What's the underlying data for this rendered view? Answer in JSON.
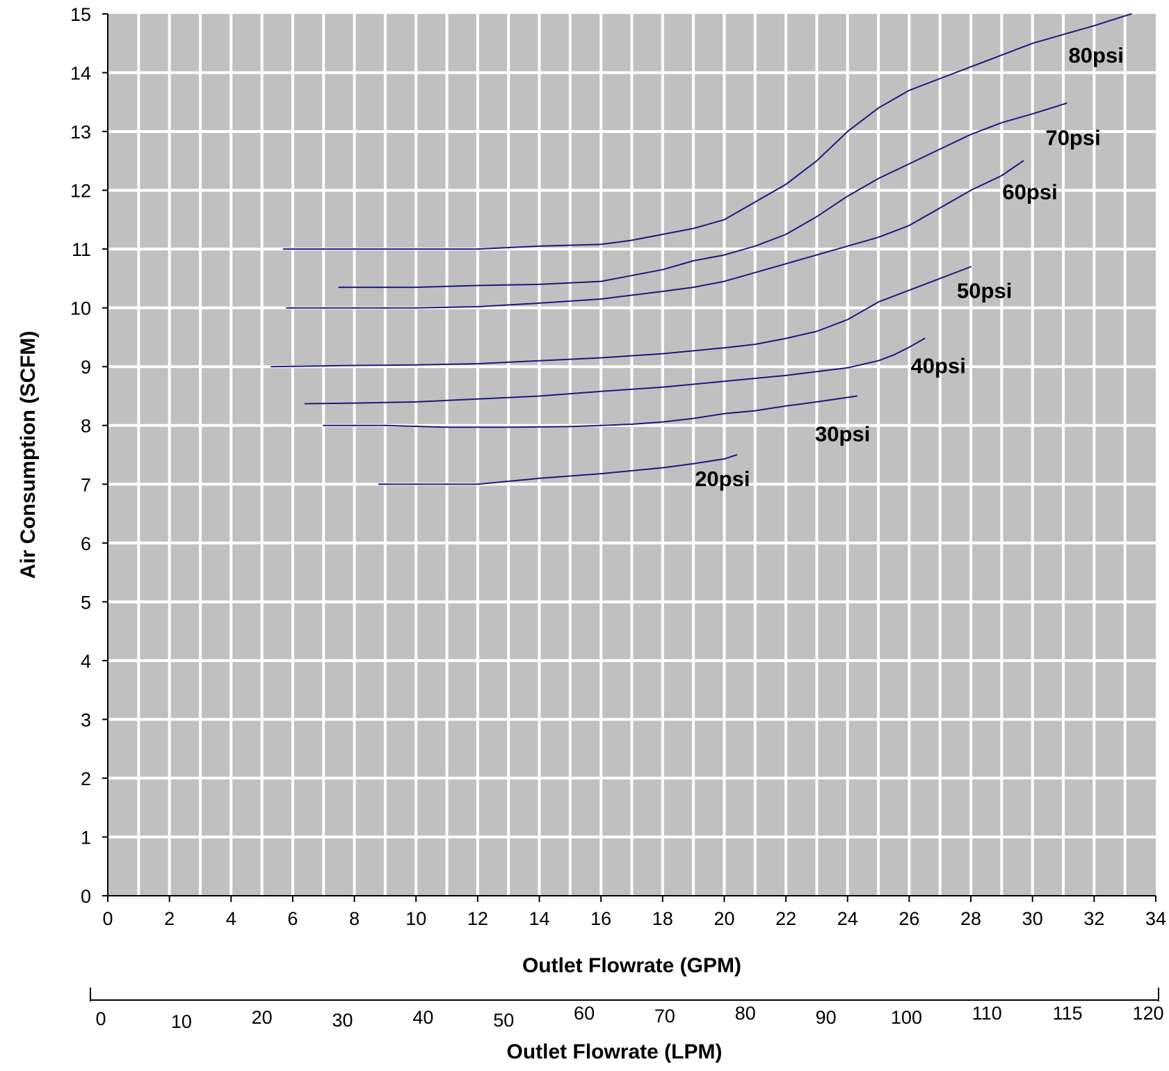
{
  "chart_data": {
    "type": "line",
    "title": "",
    "xlabel": "Outlet Flowrate (GPM)",
    "ylabel": "Air Consumption (SCFM)",
    "xlim": [
      0,
      34
    ],
    "ylim": [
      0,
      15
    ],
    "x_ticks": [
      "0",
      "2",
      "4",
      "6",
      "8",
      "10",
      "12",
      "14",
      "16",
      "18",
      "20",
      "22",
      "24",
      "26",
      "28",
      "30",
      "32",
      "34"
    ],
    "y_ticks": [
      "0",
      "1",
      "2",
      "3",
      "4",
      "5",
      "6",
      "7",
      "8",
      "9",
      "10",
      "11",
      "12",
      "13",
      "14",
      "15"
    ],
    "grid": true,
    "colors": {
      "plot_background": "#c0c0c0",
      "grid": "#ffffff",
      "line": "#1a1a80"
    },
    "secondary_x_axis": {
      "label": "Outlet Flowrate (LPM)",
      "ticks": [
        "0",
        "10",
        "20",
        "30",
        "40",
        "50",
        "60",
        "70",
        "80",
        "90",
        "100",
        "110",
        "115",
        "120"
      ]
    },
    "series": [
      {
        "name": "80psi",
        "points": [
          [
            5.7,
            11.0
          ],
          [
            8,
            11.0
          ],
          [
            10,
            11.0
          ],
          [
            12,
            11.0
          ],
          [
            14,
            11.05
          ],
          [
            16,
            11.08
          ],
          [
            17,
            11.15
          ],
          [
            18,
            11.25
          ],
          [
            19,
            11.35
          ],
          [
            20,
            11.5
          ],
          [
            21,
            11.8
          ],
          [
            22,
            12.1
          ],
          [
            23,
            12.5
          ],
          [
            24,
            13.0
          ],
          [
            25,
            13.4
          ],
          [
            26,
            13.7
          ],
          [
            27,
            13.9
          ],
          [
            28,
            14.1
          ],
          [
            29,
            14.3
          ],
          [
            30,
            14.5
          ],
          [
            31,
            14.65
          ],
          [
            32,
            14.8
          ],
          [
            33.2,
            15.0
          ]
        ]
      },
      {
        "name": "70psi",
        "points": [
          [
            7.5,
            10.35
          ],
          [
            10,
            10.35
          ],
          [
            12,
            10.38
          ],
          [
            14,
            10.4
          ],
          [
            16,
            10.45
          ],
          [
            17,
            10.55
          ],
          [
            18,
            10.65
          ],
          [
            19,
            10.8
          ],
          [
            20,
            10.9
          ],
          [
            21,
            11.05
          ],
          [
            22,
            11.25
          ],
          [
            23,
            11.55
          ],
          [
            24,
            11.9
          ],
          [
            25,
            12.2
          ],
          [
            26,
            12.45
          ],
          [
            27,
            12.7
          ],
          [
            28,
            12.95
          ],
          [
            29,
            13.15
          ],
          [
            30,
            13.3
          ],
          [
            31.1,
            13.48
          ]
        ]
      },
      {
        "name": "60psi",
        "points": [
          [
            5.8,
            10.0
          ],
          [
            8,
            10.0
          ],
          [
            10,
            10.0
          ],
          [
            12,
            10.02
          ],
          [
            14,
            10.08
          ],
          [
            16,
            10.15
          ],
          [
            18,
            10.28
          ],
          [
            19,
            10.35
          ],
          [
            20,
            10.45
          ],
          [
            21,
            10.6
          ],
          [
            22,
            10.75
          ],
          [
            23,
            10.9
          ],
          [
            24,
            11.05
          ],
          [
            25,
            11.2
          ],
          [
            26,
            11.4
          ],
          [
            27,
            11.7
          ],
          [
            28,
            12.0
          ],
          [
            29,
            12.25
          ],
          [
            29.7,
            12.5
          ]
        ]
      },
      {
        "name": "50psi",
        "points": [
          [
            5.3,
            9.0
          ],
          [
            8,
            9.02
          ],
          [
            10,
            9.03
          ],
          [
            12,
            9.05
          ],
          [
            14,
            9.1
          ],
          [
            16,
            9.15
          ],
          [
            18,
            9.22
          ],
          [
            20,
            9.32
          ],
          [
            21,
            9.38
          ],
          [
            22,
            9.48
          ],
          [
            23,
            9.6
          ],
          [
            24,
            9.8
          ],
          [
            25,
            10.1
          ],
          [
            26,
            10.3
          ],
          [
            27,
            10.5
          ],
          [
            28,
            10.7
          ]
        ]
      },
      {
        "name": "40psi",
        "points": [
          [
            6.4,
            8.37
          ],
          [
            8,
            8.38
          ],
          [
            10,
            8.4
          ],
          [
            12,
            8.45
          ],
          [
            14,
            8.5
          ],
          [
            16,
            8.58
          ],
          [
            18,
            8.65
          ],
          [
            20,
            8.75
          ],
          [
            22,
            8.85
          ],
          [
            24,
            8.98
          ],
          [
            25,
            9.1
          ],
          [
            25.5,
            9.2
          ],
          [
            26,
            9.33
          ],
          [
            26.5,
            9.48
          ]
        ]
      },
      {
        "name": "30psi",
        "points": [
          [
            7,
            8.0
          ],
          [
            9,
            8.0
          ],
          [
            11,
            7.97
          ],
          [
            13,
            7.97
          ],
          [
            15,
            7.98
          ],
          [
            17,
            8.02
          ],
          [
            18,
            8.06
          ],
          [
            19,
            8.12
          ],
          [
            20,
            8.2
          ],
          [
            21,
            8.25
          ],
          [
            22,
            8.33
          ],
          [
            23,
            8.4
          ],
          [
            24.3,
            8.5
          ]
        ]
      },
      {
        "name": "20psi",
        "points": [
          [
            8.8,
            7.0
          ],
          [
            10,
            7.0
          ],
          [
            12,
            7.0
          ],
          [
            14,
            7.1
          ],
          [
            16,
            7.18
          ],
          [
            18,
            7.28
          ],
          [
            19,
            7.35
          ],
          [
            20,
            7.43
          ],
          [
            20.4,
            7.5
          ]
        ]
      }
    ]
  }
}
